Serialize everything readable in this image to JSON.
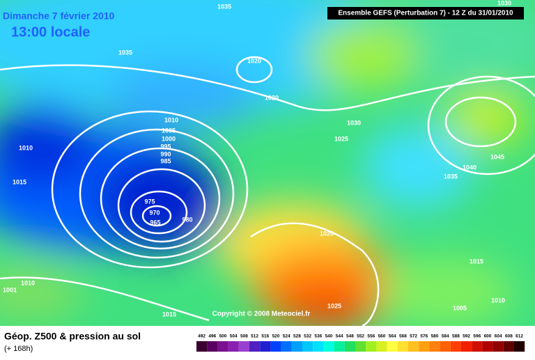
{
  "header": {
    "date": "Dimanche 7 février 2010",
    "time": "13:00 locale",
    "model": "Ensemble GEFS (Perturbation 7)  -  12 Z du 31/01/2010"
  },
  "isobar_labels": [
    "1035",
    "1030",
    "1035",
    "1020",
    "1020",
    "1030",
    "1010",
    "1005",
    "1000",
    "995",
    "990",
    "985",
    "1010",
    "1015",
    "975",
    "970",
    "965",
    "980",
    "1025",
    "1040",
    "1045",
    "1035",
    "1020",
    "1015",
    "1010",
    "1001",
    "1015",
    "1025",
    "1005",
    "1010"
  ],
  "copyright": "Copyright © 2008 Meteociel.fr",
  "footer": {
    "title": "Géop. Z500 & pression au sol",
    "subtitle": "(+ 168h)"
  },
  "scale": {
    "labels": [
      "492",
      "496",
      "500",
      "504",
      "508",
      "512",
      "516",
      "520",
      "524",
      "528",
      "532",
      "536",
      "540",
      "544",
      "548",
      "552",
      "556",
      "560",
      "564",
      "568",
      "572",
      "576",
      "580",
      "584",
      "588",
      "592",
      "596",
      "600",
      "604",
      "608",
      "612"
    ],
    "colors": [
      "#3a0030",
      "#5a0060",
      "#7a1090",
      "#8a20b0",
      "#9a40d0",
      "#5020c0",
      "#2020d0",
      "#0040ff",
      "#0070ff",
      "#00a0ff",
      "#00c8ff",
      "#00e0ff",
      "#00ffe0",
      "#00f0a0",
      "#20e060",
      "#60e030",
      "#a0f020",
      "#d8f020",
      "#ffff40",
      "#ffe030",
      "#ffc020",
      "#ffa010",
      "#ff8010",
      "#ff6000",
      "#ff4000",
      "#f02000",
      "#d01000",
      "#b00000",
      "#900000",
      "#600000",
      "#200000"
    ]
  }
}
